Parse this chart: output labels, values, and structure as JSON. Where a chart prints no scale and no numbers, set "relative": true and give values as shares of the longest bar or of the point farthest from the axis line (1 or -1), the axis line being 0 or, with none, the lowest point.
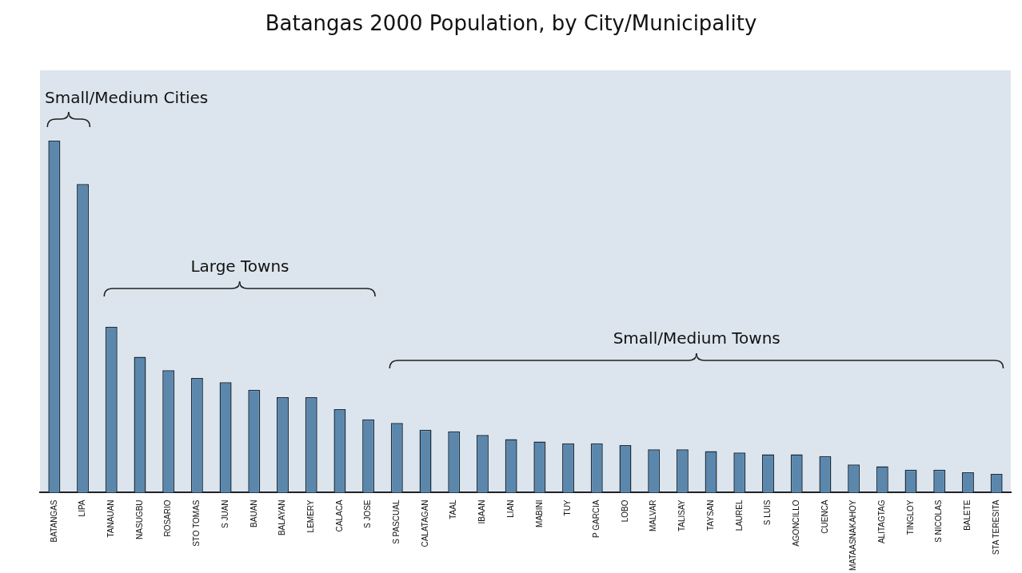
{
  "chart_data": {
    "type": "bar",
    "title": "Batangas 2000 Population, by City/Municipality",
    "categories": [
      "BATANGAS",
      "LIPA",
      "TANAUAN",
      "NASUGBU",
      "ROSARIO",
      "STO TOMAS",
      "S JUAN",
      "BAUAN",
      "BALAYAN",
      "LEMERY",
      "CALACA",
      "S JOSE",
      "S PASCUAL",
      "CALATAGAN",
      "TAAL",
      "IBAAN",
      "LIAN",
      "MABINI",
      "TUY",
      "P GARCIA",
      "LOBO",
      "MALVAR",
      "TALISAY",
      "TAYSAN",
      "LAUREL",
      "S LUIS",
      "AGONCILLO",
      "CUENCA",
      "MATAASNAKAHOY",
      "ALITAGTAG",
      "TINGLOY",
      "S NICOLAS",
      "BALETE",
      "STA TERESITA"
    ],
    "values": [
      1,
      0.877,
      0.471,
      0.386,
      0.348,
      0.326,
      0.314,
      0.292,
      0.271,
      0.271,
      0.237,
      0.208,
      0.198,
      0.179,
      0.174,
      0.164,
      0.152,
      0.145,
      0.14,
      0.14,
      0.135,
      0.123,
      0.123,
      0.118,
      0.114,
      0.109,
      0.109,
      0.104,
      0.08,
      0.075,
      0.065,
      0.065,
      0.058,
      0.053
    ],
    "color": "#5b87ad",
    "relative": true,
    "legend": false,
    "annotations": [
      "Small/Medium Cities",
      "Large Towns",
      "Small/Medium Towns"
    ]
  }
}
